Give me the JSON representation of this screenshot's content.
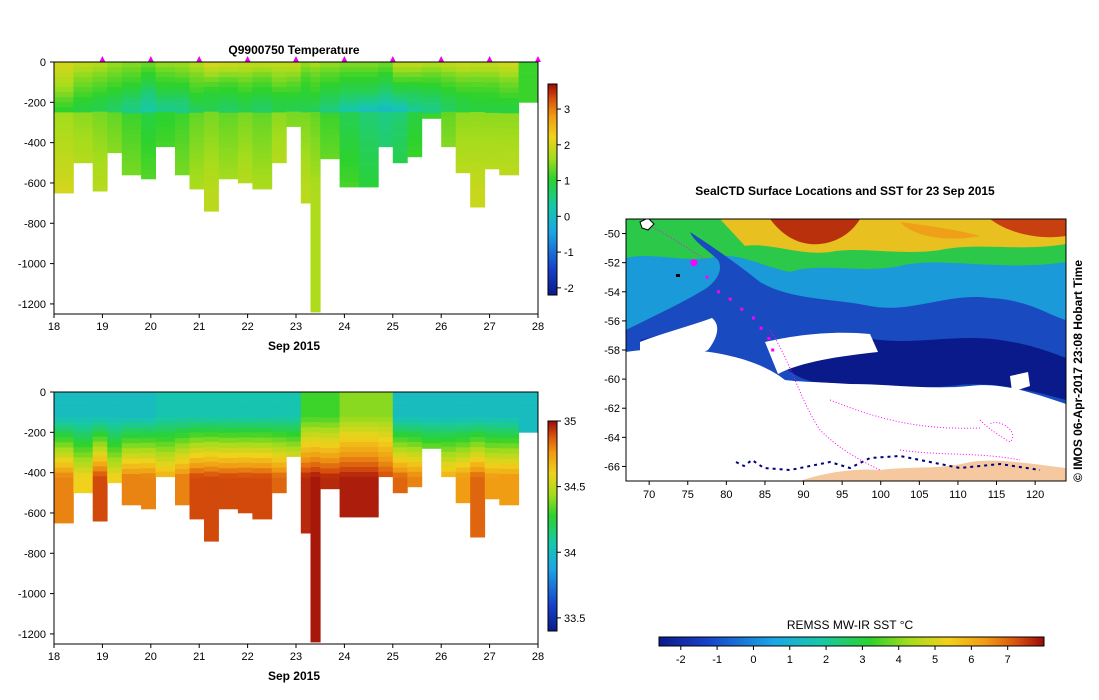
{
  "colors": {
    "background": "#ffffff",
    "profile_marker": "#ee00ee",
    "land": "#f5c8a0",
    "ice_edge": "#000080",
    "track": "#ff00ff"
  },
  "icons": {
    "profile_marker": "triangle-up",
    "current_position": "dot"
  },
  "chart_data": [
    {
      "id": "temperature",
      "type": "heatmap",
      "title": "Q9900750  Temperature",
      "xlabel": "Sep 2015",
      "ylabel": "",
      "xlim": [
        18,
        28
      ],
      "ylim": [
        -1250,
        0
      ],
      "xticks": [
        18,
        19,
        20,
        21,
        22,
        23,
        24,
        25,
        26,
        27,
        28
      ],
      "yticks": [
        0,
        -200,
        -400,
        -600,
        -800,
        -1000,
        -1200
      ],
      "ytick_labels": [
        "0",
        "-200",
        "-400",
        "-600",
        "-800",
        "-1000",
        "-1200"
      ],
      "colorbar": {
        "min": -2.2,
        "max": 3.7,
        "ticks": [
          3,
          2,
          1,
          0,
          -1,
          -2
        ],
        "tick_labels": [
          "3",
          "2",
          "1",
          "0",
          "-1",
          "-2"
        ]
      },
      "profile_markers": [
        19,
        20,
        21,
        22,
        23,
        24,
        25,
        26,
        27,
        28
      ],
      "profiles": [
        {
          "x": 18.0,
          "depth": 650,
          "top": [
            2.0,
            1.9,
            1.7,
            1.5,
            1.2,
            1.0
          ]
        },
        {
          "x": 18.4,
          "depth": 500,
          "top": [
            1.9,
            1.6,
            1.4,
            1.2,
            1.0,
            0.9
          ]
        },
        {
          "x": 18.8,
          "depth": 640,
          "top": [
            1.8,
            1.5,
            1.3,
            1.1,
            0.9,
            0.8
          ]
        },
        {
          "x": 19.1,
          "depth": 450,
          "top": [
            1.6,
            1.4,
            1.2,
            1.0,
            0.8,
            0.7
          ]
        },
        {
          "x": 19.4,
          "depth": 560,
          "top": [
            1.5,
            1.3,
            1.1,
            0.9,
            0.6,
            0.5
          ]
        },
        {
          "x": 19.8,
          "depth": 580,
          "top": [
            1.4,
            1.1,
            0.9,
            0.6,
            0.4,
            0.3
          ]
        },
        {
          "x": 20.1,
          "depth": 420,
          "top": [
            1.6,
            1.3,
            1.1,
            0.9,
            0.6,
            0.4
          ]
        },
        {
          "x": 20.5,
          "depth": 560,
          "top": [
            1.6,
            1.4,
            1.1,
            0.9,
            0.6,
            0.5
          ]
        },
        {
          "x": 20.8,
          "depth": 630,
          "top": [
            1.8,
            1.5,
            1.3,
            1.1,
            0.9,
            0.7
          ]
        },
        {
          "x": 21.1,
          "depth": 740,
          "top": [
            2.1,
            1.7,
            1.3,
            1.0,
            0.9,
            0.8
          ]
        },
        {
          "x": 21.4,
          "depth": 580,
          "top": [
            2.0,
            1.6,
            1.2,
            1.0,
            0.8,
            0.7
          ]
        },
        {
          "x": 21.8,
          "depth": 600,
          "top": [
            1.9,
            1.6,
            1.3,
            1.1,
            0.9,
            0.8
          ]
        },
        {
          "x": 22.1,
          "depth": 630,
          "top": [
            1.9,
            1.5,
            1.2,
            1.0,
            0.8,
            0.7
          ]
        },
        {
          "x": 22.5,
          "depth": 500,
          "top": [
            1.9,
            1.6,
            1.4,
            1.1,
            0.9,
            0.9
          ]
        },
        {
          "x": 22.8,
          "depth": 320,
          "top": [
            1.9,
            1.6,
            1.3,
            1.1,
            0.9,
            0.8
          ]
        },
        {
          "x": 23.1,
          "depth": 700,
          "top": [
            1.6,
            1.3,
            1.1,
            1.0,
            0.9,
            0.8
          ]
        },
        {
          "x": 23.3,
          "depth": 1240,
          "top": [
            1.7,
            1.4,
            1.2,
            1.1,
            0.9,
            0.7
          ]
        },
        {
          "x": 23.5,
          "depth": 480,
          "top": [
            1.6,
            1.3,
            1.1,
            0.9,
            0.7,
            0.5
          ]
        },
        {
          "x": 23.9,
          "depth": 620,
          "top": [
            1.5,
            1.2,
            1.0,
            0.8,
            0.5,
            0.2
          ]
        },
        {
          "x": 24.3,
          "depth": 620,
          "top": [
            1.5,
            1.2,
            1.0,
            0.8,
            0.4,
            0.0
          ]
        },
        {
          "x": 24.7,
          "depth": 420,
          "top": [
            1.4,
            1.1,
            0.9,
            0.6,
            0.3,
            -0.1
          ]
        },
        {
          "x": 25.0,
          "depth": 500,
          "top": [
            1.9,
            1.5,
            1.1,
            0.8,
            0.4,
            0.0
          ]
        },
        {
          "x": 25.3,
          "depth": 470,
          "top": [
            1.9,
            1.5,
            1.1,
            0.8,
            0.6,
            0.3
          ]
        },
        {
          "x": 25.6,
          "depth": 280,
          "top": [
            1.8,
            1.4,
            1.1,
            0.9,
            0.6,
            0.5
          ]
        },
        {
          "x": 26.0,
          "depth": 420,
          "top": [
            1.9,
            1.5,
            1.2,
            1.0,
            0.8,
            0.7
          ]
        },
        {
          "x": 26.3,
          "depth": 550,
          "top": [
            2.0,
            1.6,
            1.3,
            1.1,
            0.9,
            0.9
          ]
        },
        {
          "x": 26.6,
          "depth": 720,
          "top": [
            1.9,
            1.6,
            1.3,
            1.1,
            1.0,
            0.9
          ]
        },
        {
          "x": 26.9,
          "depth": 530,
          "top": [
            1.9,
            1.6,
            1.3,
            1.1,
            1.0,
            0.9
          ]
        },
        {
          "x": 27.2,
          "depth": 560,
          "top": [
            2.0,
            1.7,
            1.4,
            1.2,
            1.0,
            0.9
          ]
        },
        {
          "x": 27.6,
          "depth": 200,
          "top": [
            1.1,
            1.1,
            1.1,
            1.1,
            1.1,
            1.1
          ]
        }
      ]
    },
    {
      "id": "salinity",
      "type": "heatmap",
      "title": "",
      "xlabel": "Sep 2015",
      "ylabel": "",
      "xlim": [
        18,
        28
      ],
      "ylim": [
        -1250,
        0
      ],
      "xticks": [
        18,
        19,
        20,
        21,
        22,
        23,
        24,
        25,
        26,
        27,
        28
      ],
      "yticks": [
        0,
        -200,
        -400,
        -600,
        -800,
        -1000,
        -1200
      ],
      "ytick_labels": [
        "0",
        "-200",
        "-400",
        "-600",
        "-800",
        "-1000",
        "-1200"
      ],
      "colorbar": {
        "min": 33.4,
        "max": 35.0,
        "ticks": [
          35,
          34.5,
          34,
          33.5
        ],
        "tick_labels": [
          "35",
          "34.5",
          "34",
          "33.5"
        ]
      },
      "profiles": [
        {
          "x": 18.0,
          "depth": 650,
          "surface": 34.0,
          "deep": 34.8
        },
        {
          "x": 18.4,
          "depth": 500,
          "surface": 34.0,
          "deep": 34.6
        },
        {
          "x": 18.8,
          "depth": 640,
          "surface": 34.0,
          "deep": 34.9
        },
        {
          "x": 19.1,
          "depth": 450,
          "surface": 34.0,
          "deep": 34.6
        },
        {
          "x": 19.4,
          "depth": 560,
          "surface": 34.0,
          "deep": 34.8
        },
        {
          "x": 19.8,
          "depth": 580,
          "surface": 34.0,
          "deep": 34.8
        },
        {
          "x": 20.1,
          "depth": 420,
          "surface": 34.05,
          "deep": 34.7
        },
        {
          "x": 20.5,
          "depth": 560,
          "surface": 34.05,
          "deep": 34.8
        },
        {
          "x": 20.8,
          "depth": 630,
          "surface": 34.05,
          "deep": 34.9
        },
        {
          "x": 21.1,
          "depth": 740,
          "surface": 34.05,
          "deep": 34.9
        },
        {
          "x": 21.4,
          "depth": 580,
          "surface": 34.05,
          "deep": 34.9
        },
        {
          "x": 21.8,
          "depth": 600,
          "surface": 34.05,
          "deep": 34.9
        },
        {
          "x": 22.1,
          "depth": 630,
          "surface": 34.05,
          "deep": 34.9
        },
        {
          "x": 22.5,
          "depth": 500,
          "surface": 34.05,
          "deep": 34.85
        },
        {
          "x": 22.8,
          "depth": 320,
          "surface": 34.05,
          "deep": 34.8
        },
        {
          "x": 23.1,
          "depth": 700,
          "surface": 34.3,
          "deep": 34.95
        },
        {
          "x": 23.3,
          "depth": 1240,
          "surface": 34.3,
          "deep": 34.98
        },
        {
          "x": 23.5,
          "depth": 480,
          "surface": 34.3,
          "deep": 34.95
        },
        {
          "x": 23.9,
          "depth": 620,
          "surface": 34.4,
          "deep": 34.97
        },
        {
          "x": 24.3,
          "depth": 620,
          "surface": 34.4,
          "deep": 34.97
        },
        {
          "x": 24.7,
          "depth": 420,
          "surface": 34.4,
          "deep": 34.9
        },
        {
          "x": 25.0,
          "depth": 500,
          "surface": 34.0,
          "deep": 34.85
        },
        {
          "x": 25.3,
          "depth": 470,
          "surface": 34.0,
          "deep": 34.8
        },
        {
          "x": 25.6,
          "depth": 280,
          "surface": 34.0,
          "deep": 34.7
        },
        {
          "x": 26.0,
          "depth": 420,
          "surface": 34.0,
          "deep": 34.7
        },
        {
          "x": 26.3,
          "depth": 550,
          "surface": 34.0,
          "deep": 34.75
        },
        {
          "x": 26.6,
          "depth": 720,
          "surface": 34.0,
          "deep": 34.85
        },
        {
          "x": 26.9,
          "depth": 530,
          "surface": 34.0,
          "deep": 34.75
        },
        {
          "x": 27.2,
          "depth": 560,
          "surface": 34.0,
          "deep": 34.75
        },
        {
          "x": 27.6,
          "depth": 200,
          "surface": 34.0,
          "deep": 34.0
        }
      ]
    },
    {
      "id": "sst_map",
      "type": "heatmap",
      "title": "SealCTD Surface Locations and SST for 23 Sep 2015",
      "xlabel": "",
      "ylabel": "",
      "xlim": [
        67,
        124
      ],
      "ylim": [
        -67,
        -49
      ],
      "xticks": [
        70,
        75,
        80,
        85,
        90,
        95,
        100,
        105,
        110,
        115,
        120
      ],
      "yticks": [
        -50,
        -52,
        -54,
        -56,
        -58,
        -60,
        -62,
        -64,
        -66
      ],
      "ytick_labels": [
        "-50",
        "-52",
        "-54",
        "-56",
        "-58",
        "-60",
        "-62",
        "-64",
        "-66"
      ],
      "colorbar": {
        "label": "REMSS MW-IR SST °C",
        "min": -2.6,
        "max": 8.0,
        "ticks": [
          -2,
          -1,
          0,
          1,
          2,
          3,
          4,
          5,
          6,
          7
        ],
        "tick_labels": [
          "-2",
          "-1",
          "0",
          "1",
          "2",
          "3",
          "4",
          "5",
          "6",
          "7"
        ]
      },
      "track": [
        {
          "lon": 76.0,
          "lat": -52.0
        },
        {
          "lon": 77.5,
          "lat": -53.0
        },
        {
          "lon": 79.0,
          "lat": -54.0
        },
        {
          "lon": 80.5,
          "lat": -54.5
        },
        {
          "lon": 82.0,
          "lat": -55.2
        },
        {
          "lon": 83.5,
          "lat": -55.8
        },
        {
          "lon": 84.5,
          "lat": -56.5
        },
        {
          "lon": 85.5,
          "lat": -57.2
        },
        {
          "lon": 86.0,
          "lat": -58.0
        }
      ],
      "current_position": {
        "lon": 75.8,
        "lat": -52.0
      }
    }
  ],
  "credit": "©  IMOS 06-Apr-2017 23:08 Hobart Time"
}
